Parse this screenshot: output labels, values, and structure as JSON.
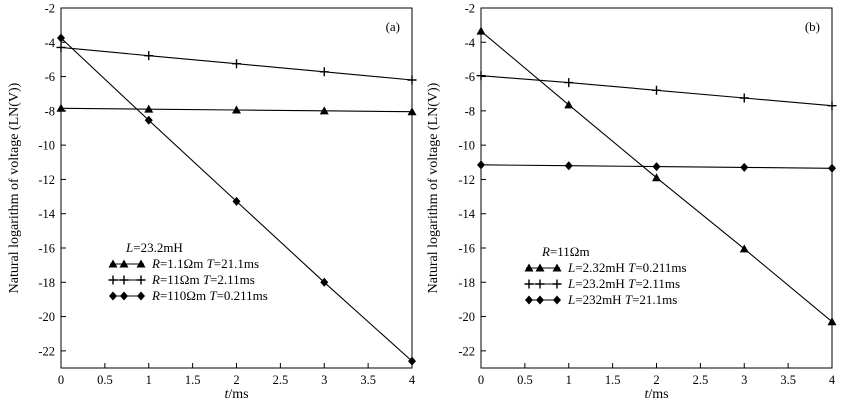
{
  "chart_data": [
    {
      "type": "line",
      "panel_label": "(a)",
      "xlabel_italic": "t",
      "xlabel_unit": "/ms",
      "ylabel": "Natural logarithm of voltage (LN(V))",
      "xlim": [
        0,
        4
      ],
      "ylim": [
        -23,
        -2
      ],
      "x_ticks": [
        "0",
        "0.5",
        "1",
        "1.5",
        "2",
        "2.5",
        "3",
        "3.5",
        "4"
      ],
      "y_ticks": [
        "-2",
        "-4",
        "-6",
        "-8",
        "-10",
        "-12",
        "-14",
        "-16",
        "-18",
        "-20",
        "-22"
      ],
      "grid": false,
      "legend_position": "bottom-left",
      "legend_header": {
        "italic": "L",
        "text": "=23.2mH"
      },
      "series": [
        {
          "marker": "triangle",
          "legend": [
            {
              "i": "R"
            },
            {
              "t": "=1.1Ωm  "
            },
            {
              "i": "T"
            },
            {
              "t": "=21.1ms"
            }
          ],
          "x": [
            0,
            1,
            2,
            3,
            4
          ],
          "y": [
            -7.85,
            -7.9,
            -7.95,
            -8.0,
            -8.05
          ]
        },
        {
          "marker": "plus",
          "legend": [
            {
              "i": "R"
            },
            {
              "t": "=11Ωm    "
            },
            {
              "i": "T"
            },
            {
              "t": "=2.11ms"
            }
          ],
          "x": [
            0,
            1,
            2,
            3,
            4
          ],
          "y": [
            -4.3,
            -4.78,
            -5.25,
            -5.72,
            -6.2
          ]
        },
        {
          "marker": "diamond",
          "legend": [
            {
              "i": "R"
            },
            {
              "t": "=110Ωm "
            },
            {
              "i": "T"
            },
            {
              "t": "=0.211ms"
            }
          ],
          "x": [
            0,
            1,
            2,
            3,
            4
          ],
          "y": [
            -3.75,
            -8.55,
            -13.28,
            -18.0,
            -22.6
          ]
        }
      ]
    },
    {
      "type": "line",
      "panel_label": "(b)",
      "xlabel_italic": "t",
      "xlabel_unit": "/ms",
      "ylabel": "Natural logarithm of voltage (LN(V))",
      "xlim": [
        0,
        4
      ],
      "ylim": [
        -23,
        -2
      ],
      "x_ticks": [
        "0",
        "0.5",
        "1",
        "1.5",
        "2",
        "2.5",
        "3",
        "3.5",
        "4"
      ],
      "y_ticks": [
        "-2",
        "-4",
        "-6",
        "-8",
        "-10",
        "-12",
        "-14",
        "-16",
        "-18",
        "-20",
        "-22"
      ],
      "grid": false,
      "legend_position": "bottom-center",
      "legend_header": {
        "italic": "R",
        "text": "=11Ωm"
      },
      "series": [
        {
          "marker": "triangle",
          "legend": [
            {
              "i": "L"
            },
            {
              "t": "=2.32mH   "
            },
            {
              "i": "T"
            },
            {
              "t": "=0.211ms"
            }
          ],
          "x": [
            0,
            1,
            2,
            3,
            4
          ],
          "y": [
            -3.35,
            -7.65,
            -11.9,
            -16.05,
            -20.3
          ]
        },
        {
          "marker": "plus",
          "legend": [
            {
              "i": "L"
            },
            {
              "t": "=23.2mH   "
            },
            {
              "i": "T"
            },
            {
              "t": "=2.11ms"
            }
          ],
          "x": [
            0,
            1,
            2,
            3,
            4
          ],
          "y": [
            -5.95,
            -6.35,
            -6.8,
            -7.25,
            -7.7
          ]
        },
        {
          "marker": "diamond",
          "legend": [
            {
              "i": "L"
            },
            {
              "t": "=232mH     "
            },
            {
              "i": "T"
            },
            {
              "t": "=21.1ms"
            }
          ],
          "x": [
            0,
            1,
            2,
            3,
            4
          ],
          "y": [
            -11.15,
            -11.2,
            -11.25,
            -11.3,
            -11.35
          ]
        }
      ]
    }
  ]
}
